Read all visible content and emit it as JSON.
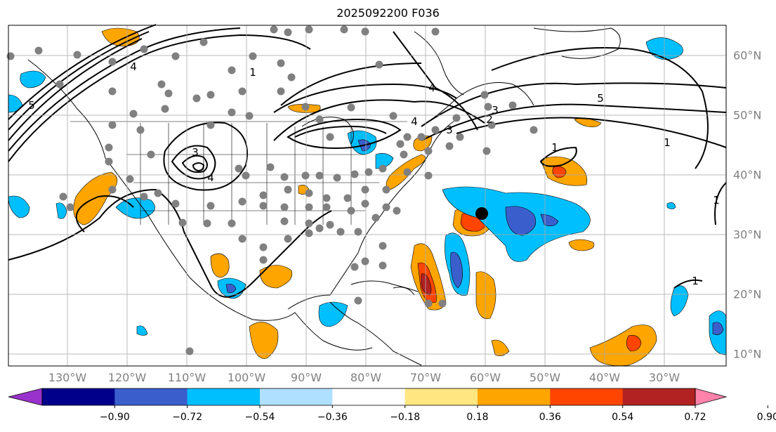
{
  "title": "2025092200 F036",
  "lon_labels": [
    "130°W",
    "120°W",
    "110°W",
    "100°W",
    "90°W",
    "80°W",
    "70°W",
    "60°W",
    "50°W",
    "40°W",
    "30°W"
  ],
  "lat_labels": [
    "60°N",
    "50°N",
    "40°N",
    "30°N",
    "20°N",
    "10°N"
  ],
  "colorbar": {
    "ticks": [
      "−0.90",
      "−0.72",
      "−0.54",
      "−0.36",
      "−0.18",
      "0.18",
      "0.36",
      "0.54",
      "0.72",
      "0.90"
    ],
    "colors": [
      "#9932CC",
      "#00008B",
      "#3A5FCD",
      "#00BFFF",
      "#B0E0FF",
      "#FFFFFF",
      "#FFE680",
      "#FFA500",
      "#FF4500",
      "#B22222",
      "#FF82AB"
    ]
  },
  "contour_labels": [
    "1",
    "4",
    "4",
    "3",
    "5",
    "3",
    "2",
    "3",
    "4",
    "4",
    "1",
    "5",
    "1",
    "1",
    "1"
  ],
  "map": {
    "projection": "platecarree",
    "lon_range": [
      -142,
      -21
    ],
    "lat_range": [
      7.5,
      65
    ]
  }
}
